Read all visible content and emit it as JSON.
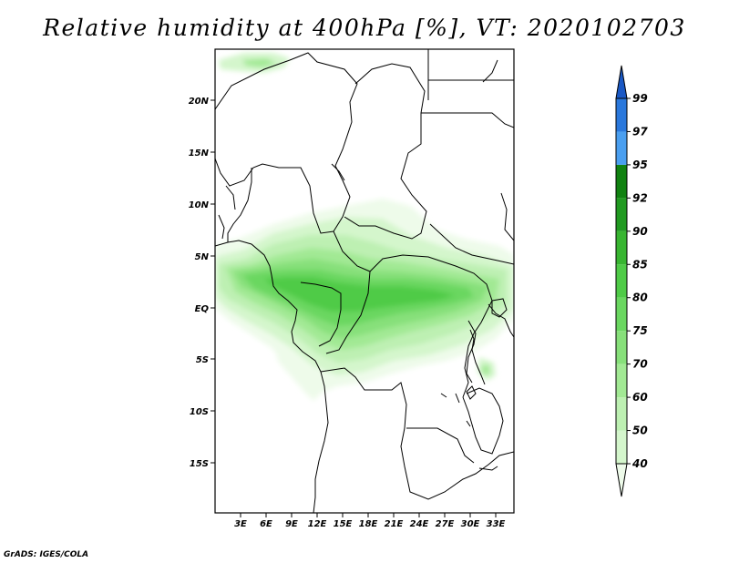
{
  "title": "Relative humidity at 400hPa [%], VT: 2020102703",
  "credit": "GrADS: IGES/COLA",
  "map": {
    "lat_ticks": [
      "20N",
      "15N",
      "10N",
      "5N",
      "EQ",
      "5S",
      "10S",
      "15S"
    ],
    "lon_ticks": [
      "3E",
      "6E",
      "9E",
      "12E",
      "15E",
      "18E",
      "21E",
      "24E",
      "27E",
      "30E",
      "33E"
    ]
  },
  "colorbar": {
    "levels": [
      "40",
      "50",
      "60",
      "70",
      "75",
      "80",
      "85",
      "90",
      "92",
      "95",
      "97",
      "99"
    ],
    "colors": [
      "#eefbea",
      "#d4f6cc",
      "#bdf0b2",
      "#a2e994",
      "#87e07a",
      "#6ad760",
      "#4fcb47",
      "#38b531",
      "#219a21",
      "#118211",
      "#4a9ff0",
      "#2a78dc",
      "#1a58c4"
    ]
  }
}
